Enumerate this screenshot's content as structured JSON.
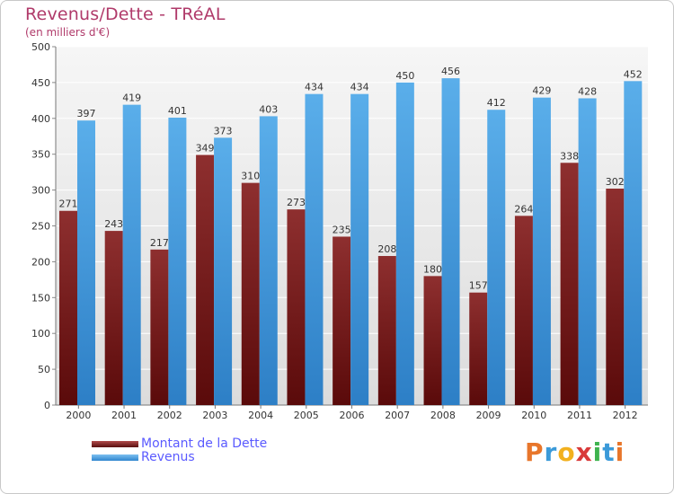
{
  "chart_data": {
    "type": "bar",
    "title": "Revenus/Dette - TRéAL",
    "subtitle": "(en milliers d'€)",
    "categories": [
      "2000",
      "2001",
      "2002",
      "2003",
      "2004",
      "2005",
      "2006",
      "2007",
      "2008",
      "2009",
      "2010",
      "2011",
      "2012"
    ],
    "series": [
      {
        "name": "Montant de la Dette",
        "color": "#7a1a1a",
        "values": [
          271,
          243,
          217,
          349,
          310,
          273,
          235,
          208,
          180,
          157,
          264,
          338,
          302
        ]
      },
      {
        "name": "Revenus",
        "color": "#4aa3e6",
        "values": [
          397,
          419,
          401,
          373,
          403,
          434,
          434,
          450,
          456,
          412,
          429,
          428,
          452
        ]
      }
    ],
    "ylim": [
      0,
      500
    ],
    "yticks": [
      0,
      50,
      100,
      150,
      200,
      250,
      300,
      350,
      400,
      450,
      500
    ],
    "grid": true,
    "legend": "bottom-left"
  },
  "logo": {
    "letters": [
      "P",
      "r",
      "o",
      "x",
      "i",
      "t",
      "i"
    ],
    "colors": [
      "#e8762b",
      "#3b9ad9",
      "#f2b01e",
      "#d93a3a",
      "#3fb34f",
      "#3b9ad9",
      "#e8762b"
    ]
  }
}
